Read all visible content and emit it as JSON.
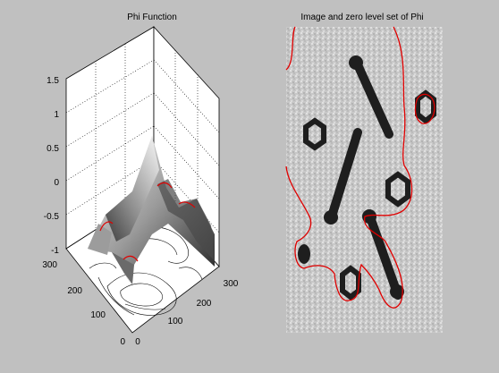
{
  "window": {
    "background": "#c0c0c0"
  },
  "panels": {
    "left": {
      "title": "Phi Function"
    },
    "right": {
      "title": "Image and zero level set of Phi"
    }
  },
  "chart_data": [
    {
      "type": "surface",
      "title": "Phi Function",
      "zlim": [
        -1,
        1.5
      ],
      "z_ticks": [
        "1.5",
        "1",
        "0.5",
        "0",
        "-0.5",
        "-1"
      ],
      "y_ticks": [
        "300",
        "200",
        "100",
        "0"
      ],
      "x_ticks": [
        "0",
        "100",
        "200",
        "300"
      ],
      "grid": true,
      "surface_colormap": "gray",
      "zero_level_color": "#e00000",
      "contour_color": "#000000"
    },
    {
      "type": "image",
      "title": "Image and zero level set of Phi",
      "image": "grayscale noisy image with dark bars and rings",
      "overlay": "zero level set contour",
      "overlay_color": "#e00000"
    }
  ]
}
